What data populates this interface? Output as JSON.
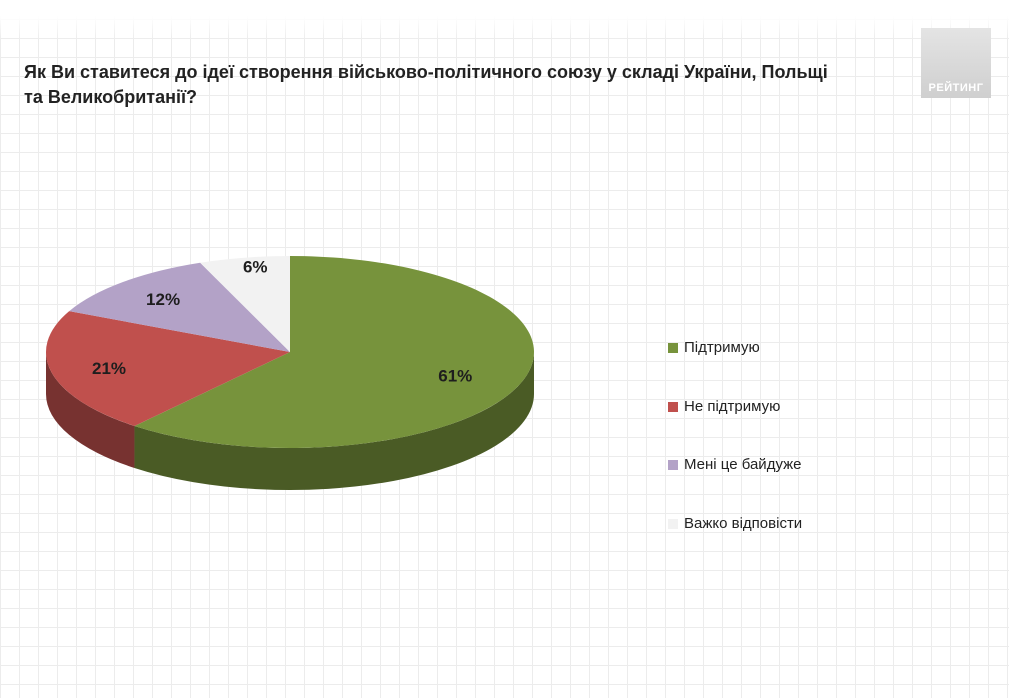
{
  "title": "Як Ви ставитеся до ідеї створення військово-політичного союзу у складі України, Польщі\nта Великобританії?",
  "logo": "РЕЙТИНГ",
  "chart_data": {
    "type": "pie",
    "categories": [
      "Підтримую",
      "Не підтримую",
      "Мені це байдуже",
      "Важко відповісти"
    ],
    "values": [
      61,
      21,
      12,
      6
    ],
    "data_labels": [
      "61%",
      "21%",
      "12%",
      "6%"
    ],
    "colors": [
      "#77933c",
      "#c0504d",
      "#b3a2c7",
      "#f2f2f2"
    ],
    "legend_position": "right",
    "three_d": true
  }
}
